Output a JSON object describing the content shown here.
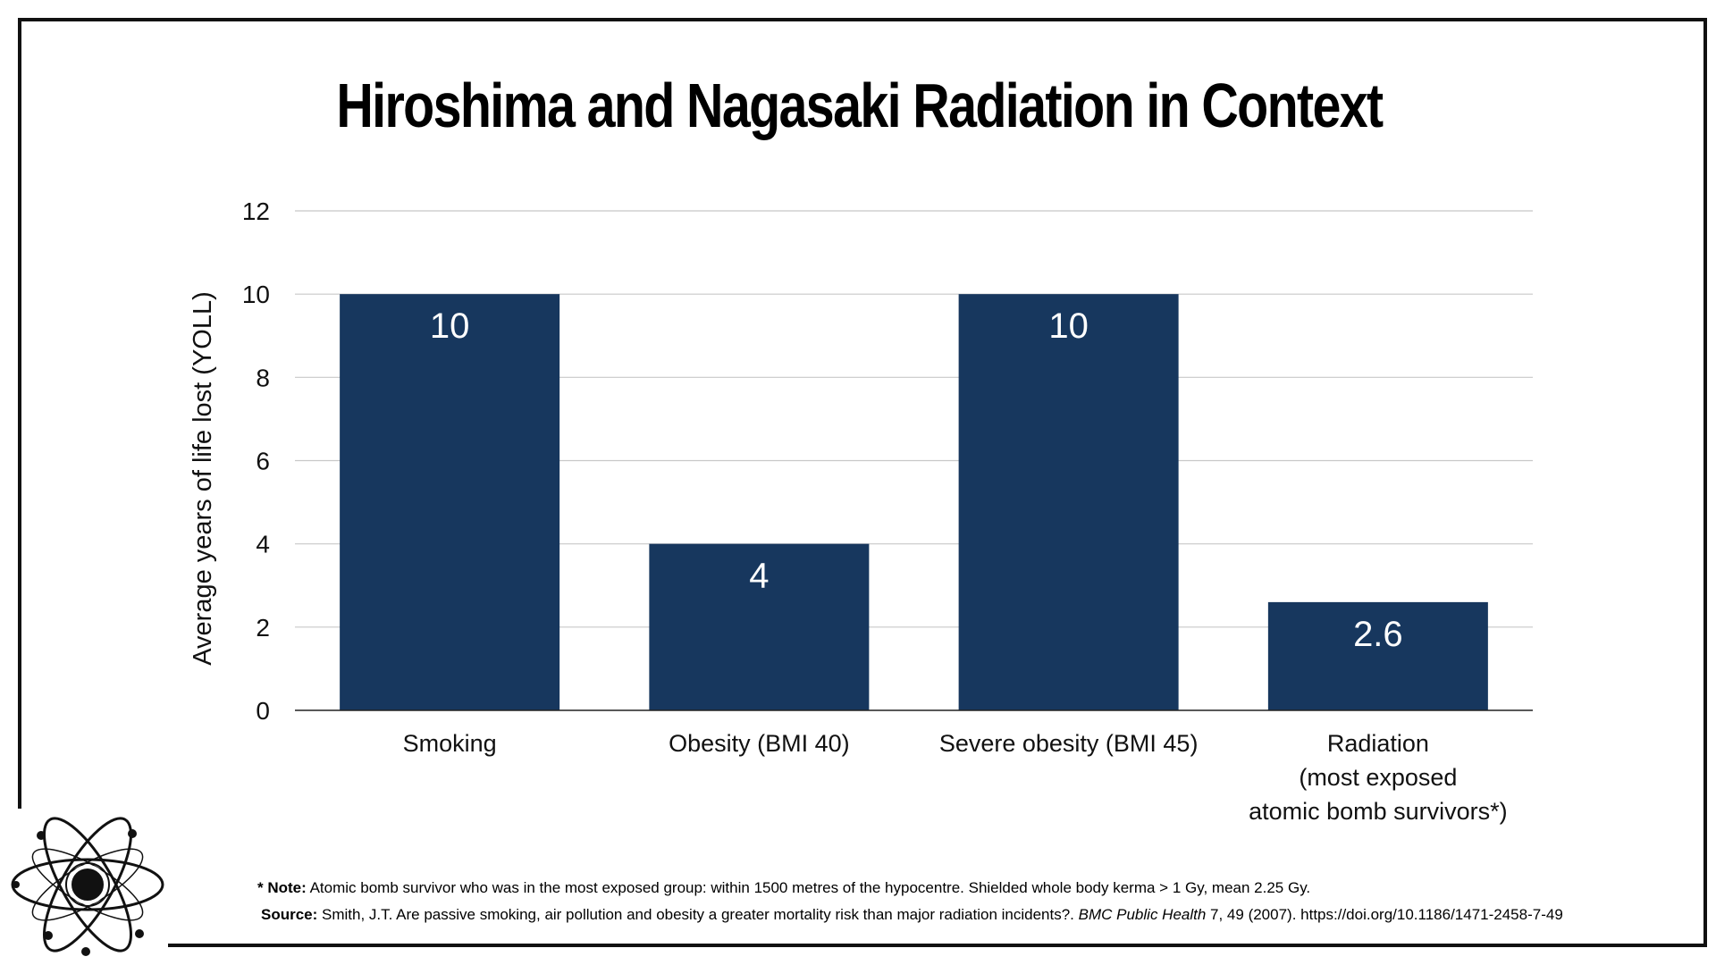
{
  "chart_data": {
    "type": "bar",
    "title": "Hiroshima and Nagasaki Radiation in Context",
    "xlabel": "",
    "ylabel": "Average years of life lost (YOLL)",
    "ylim": [
      0,
      12
    ],
    "yticks": [
      0,
      2,
      4,
      6,
      8,
      10,
      12
    ],
    "ytick_labels": [
      "0",
      "2",
      "4",
      "6",
      "8",
      "10",
      "12"
    ],
    "grid": true,
    "categories": [
      [
        "Smoking"
      ],
      [
        "Obesity (BMI 40)"
      ],
      [
        "Severe obesity (BMI 45)"
      ],
      [
        "Radiation",
        "(most exposed",
        "atomic bomb survivors*)"
      ]
    ],
    "values": [
      10,
      4,
      10,
      2.6
    ],
    "data_labels": [
      "10",
      "4",
      "10",
      "2.6"
    ],
    "bar_color": "#17375e",
    "label_color": "#ffffff",
    "grid_color": "#c8c8c8"
  },
  "footnote": {
    "note_label": "* Note:",
    "note_text": " Atomic bomb survivor who was in the most exposed group: within 1500 metres of the hypocentre. Shielded whole body kerma > 1 Gy, mean 2.25 Gy.",
    "source_label": "Source:",
    "source_text_pre": " Smith, J.T. Are passive smoking, air pollution and obesity a greater mortality risk than major radiation incidents?. ",
    "source_journal": "BMC Public Health",
    "source_text_post": " 7, 49 (2007). https://doi.org/10.1186/1471-2458-7-49"
  },
  "logo": {
    "icon": "atom-icon"
  }
}
